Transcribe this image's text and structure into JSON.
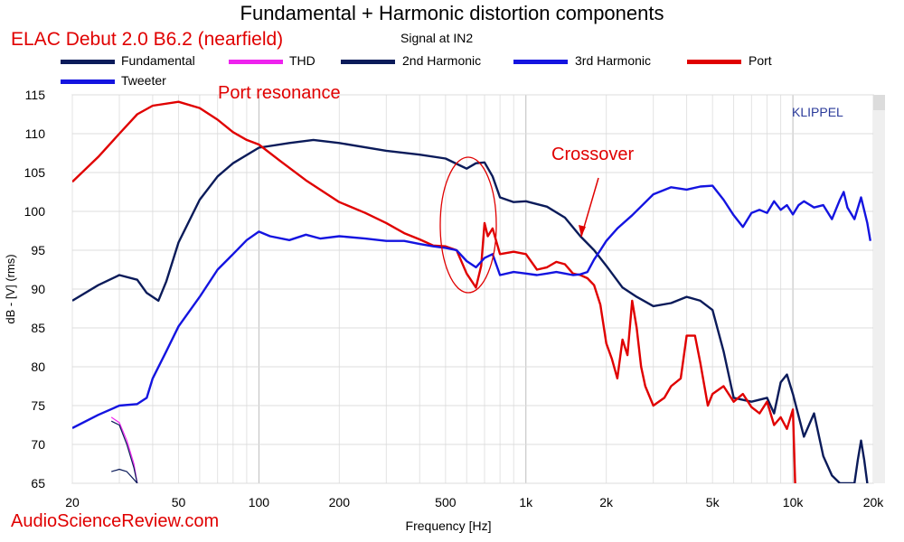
{
  "header": {
    "title": "Fundamental + Harmonic distortion components",
    "subtitle": "Signal at IN2",
    "model": "ELAC Debut 2.0 B6.2 (nearfield)",
    "brand": "KLIPPEL",
    "watermark": "AudioScienceReview.com"
  },
  "annotations": {
    "port_resonance": "Port resonance",
    "crossover": "Crossover"
  },
  "chart_data": {
    "type": "line",
    "title": "Fundamental + Harmonic distortion components",
    "subtitle": "Signal at IN2",
    "xlabel": "Frequency [Hz]",
    "ylabel": "dB - [V] (rms)",
    "xscale": "log",
    "xlim": [
      20,
      20000
    ],
    "ylim": [
      65,
      115
    ],
    "grid": true,
    "legend_position": "top",
    "x_ticks": [
      {
        "value": 20,
        "label": "20"
      },
      {
        "value": 50,
        "label": "50"
      },
      {
        "value": 100,
        "label": "100"
      },
      {
        "value": 200,
        "label": "200"
      },
      {
        "value": 500,
        "label": "500"
      },
      {
        "value": 1000,
        "label": "1k"
      },
      {
        "value": 2000,
        "label": "2k"
      },
      {
        "value": 5000,
        "label": "5k"
      },
      {
        "value": 10000,
        "label": "10k"
      },
      {
        "value": 20000,
        "label": "20k"
      }
    ],
    "y_ticks": [
      115,
      110,
      105,
      100,
      95,
      90,
      85,
      80,
      75,
      70,
      65
    ],
    "series": [
      {
        "name": "Fundamental",
        "color": "#0b1b5a",
        "points": [
          [
            20,
            88.5
          ],
          [
            25,
            90.5
          ],
          [
            30,
            91.8
          ],
          [
            35,
            91.2
          ],
          [
            38,
            89.5
          ],
          [
            42,
            88.5
          ],
          [
            45,
            91
          ],
          [
            50,
            96
          ],
          [
            60,
            101.5
          ],
          [
            70,
            104.5
          ],
          [
            80,
            106.2
          ],
          [
            100,
            108.2
          ],
          [
            130,
            108.8
          ],
          [
            160,
            109.2
          ],
          [
            200,
            108.8
          ],
          [
            300,
            107.8
          ],
          [
            400,
            107.3
          ],
          [
            500,
            106.8
          ],
          [
            600,
            105.5
          ],
          [
            650,
            106.2
          ],
          [
            700,
            106.3
          ],
          [
            750,
            104.5
          ],
          [
            800,
            101.8
          ],
          [
            900,
            101.2
          ],
          [
            1000,
            101.3
          ],
          [
            1200,
            100.6
          ],
          [
            1400,
            99.2
          ],
          [
            1600,
            96.8
          ],
          [
            1800,
            95
          ],
          [
            2000,
            93
          ],
          [
            2300,
            90.2
          ],
          [
            2600,
            89
          ],
          [
            3000,
            87.8
          ],
          [
            3500,
            88.2
          ],
          [
            4000,
            89
          ],
          [
            4500,
            88.5
          ],
          [
            5000,
            87.3
          ],
          [
            5500,
            82
          ],
          [
            6000,
            76
          ],
          [
            7000,
            75.5
          ],
          [
            8000,
            76
          ],
          [
            8500,
            74
          ],
          [
            9000,
            78
          ],
          [
            9500,
            79
          ],
          [
            10000,
            76.5
          ],
          [
            11000,
            71
          ],
          [
            12000,
            74
          ],
          [
            13000,
            68.5
          ],
          [
            14000,
            66
          ],
          [
            15000,
            65
          ],
          [
            16000,
            65
          ],
          [
            17000,
            65
          ],
          [
            17500,
            68
          ],
          [
            18000,
            70.5
          ],
          [
            18500,
            68
          ],
          [
            19000,
            65
          ]
        ]
      },
      {
        "name": "THD",
        "color": "#ee22ee",
        "points": [
          [
            28,
            73.5
          ],
          [
            30,
            72.8
          ],
          [
            32,
            70.5
          ],
          [
            34,
            67.5
          ],
          [
            35,
            65
          ]
        ]
      },
      {
        "name": "2nd Harmonic",
        "color": "#0b1b5a",
        "points": [
          [
            28,
            73
          ],
          [
            30,
            72.5
          ],
          [
            32,
            70
          ],
          [
            34,
            67
          ],
          [
            35,
            65
          ]
        ]
      },
      {
        "name": "3rd Harmonic",
        "color": "#0b1b5a",
        "points": [
          [
            28,
            66.5
          ],
          [
            30,
            66.8
          ],
          [
            32,
            66.5
          ],
          [
            34,
            65.5
          ],
          [
            35,
            65
          ]
        ]
      },
      {
        "name": "Port",
        "color": "#e00000",
        "points": [
          [
            20,
            103.8
          ],
          [
            25,
            107
          ],
          [
            30,
            110
          ],
          [
            35,
            112.5
          ],
          [
            40,
            113.6
          ],
          [
            50,
            114.1
          ],
          [
            60,
            113.3
          ],
          [
            70,
            111.8
          ],
          [
            80,
            110.2
          ],
          [
            90,
            109.2
          ],
          [
            100,
            108.6
          ],
          [
            120,
            106.5
          ],
          [
            150,
            104
          ],
          [
            200,
            101.2
          ],
          [
            250,
            99.8
          ],
          [
            300,
            98.5
          ],
          [
            350,
            97.2
          ],
          [
            400,
            96.4
          ],
          [
            450,
            95.6
          ],
          [
            500,
            95.5
          ],
          [
            550,
            95
          ],
          [
            600,
            92
          ],
          [
            650,
            90.2
          ],
          [
            680,
            93
          ],
          [
            700,
            98.5
          ],
          [
            720,
            96.8
          ],
          [
            750,
            97.8
          ],
          [
            800,
            94.5
          ],
          [
            900,
            94.8
          ],
          [
            1000,
            94.5
          ],
          [
            1100,
            92.5
          ],
          [
            1200,
            92.8
          ],
          [
            1300,
            93.5
          ],
          [
            1400,
            93.2
          ],
          [
            1500,
            92
          ],
          [
            1600,
            91.8
          ],
          [
            1700,
            91.4
          ],
          [
            1800,
            90.5
          ],
          [
            1900,
            88
          ],
          [
            2000,
            83
          ],
          [
            2100,
            81
          ],
          [
            2200,
            78.5
          ],
          [
            2300,
            83.5
          ],
          [
            2400,
            81.5
          ],
          [
            2500,
            88.5
          ],
          [
            2600,
            85
          ],
          [
            2700,
            80
          ],
          [
            2800,
            77.5
          ],
          [
            3000,
            75
          ],
          [
            3300,
            76
          ],
          [
            3500,
            77.5
          ],
          [
            3800,
            78.5
          ],
          [
            4000,
            84
          ],
          [
            4300,
            84
          ],
          [
            4500,
            80.5
          ],
          [
            4800,
            75
          ],
          [
            5000,
            76.5
          ],
          [
            5500,
            77.5
          ],
          [
            6000,
            75.5
          ],
          [
            6500,
            76.5
          ],
          [
            7000,
            74.8
          ],
          [
            7500,
            74
          ],
          [
            8000,
            75.5
          ],
          [
            8500,
            72.5
          ],
          [
            9000,
            73.5
          ],
          [
            9500,
            72
          ],
          [
            10000,
            74.5
          ],
          [
            10200,
            65
          ]
        ]
      },
      {
        "name": "Tweeter",
        "color": "#1414e0",
        "points": [
          [
            20,
            72.1
          ],
          [
            25,
            73.8
          ],
          [
            30,
            75
          ],
          [
            35,
            75.2
          ],
          [
            38,
            76
          ],
          [
            40,
            78.5
          ],
          [
            45,
            82
          ],
          [
            50,
            85.2
          ],
          [
            60,
            89
          ],
          [
            70,
            92.5
          ],
          [
            80,
            94.5
          ],
          [
            90,
            96.3
          ],
          [
            100,
            97.4
          ],
          [
            110,
            96.8
          ],
          [
            130,
            96.3
          ],
          [
            150,
            97
          ],
          [
            170,
            96.5
          ],
          [
            200,
            96.8
          ],
          [
            250,
            96.5
          ],
          [
            300,
            96.2
          ],
          [
            350,
            96.2
          ],
          [
            400,
            95.8
          ],
          [
            450,
            95.5
          ],
          [
            500,
            95.3
          ],
          [
            550,
            95
          ],
          [
            600,
            93.6
          ],
          [
            650,
            92.8
          ],
          [
            700,
            94
          ],
          [
            750,
            94.5
          ],
          [
            800,
            91.8
          ],
          [
            900,
            92.2
          ],
          [
            1000,
            92
          ],
          [
            1100,
            91.8
          ],
          [
            1200,
            92
          ],
          [
            1300,
            92.2
          ],
          [
            1400,
            92
          ],
          [
            1500,
            91.8
          ],
          [
            1600,
            91.9
          ],
          [
            1700,
            92.2
          ],
          [
            1800,
            93.8
          ],
          [
            1900,
            95
          ],
          [
            2000,
            96.2
          ],
          [
            2200,
            97.8
          ],
          [
            2500,
            99.5
          ],
          [
            3000,
            102.2
          ],
          [
            3500,
            103.1
          ],
          [
            4000,
            102.8
          ],
          [
            4500,
            103.2
          ],
          [
            5000,
            103.3
          ],
          [
            5500,
            101.5
          ],
          [
            6000,
            99.5
          ],
          [
            6500,
            98
          ],
          [
            7000,
            99.8
          ],
          [
            7500,
            100.2
          ],
          [
            8000,
            99.8
          ],
          [
            8500,
            101.3
          ],
          [
            9000,
            100.2
          ],
          [
            9500,
            100.8
          ],
          [
            10000,
            99.6
          ],
          [
            10500,
            100.8
          ],
          [
            11000,
            101.3
          ],
          [
            12000,
            100.5
          ],
          [
            13000,
            100.8
          ],
          [
            14000,
            99
          ],
          [
            15000,
            101.5
          ],
          [
            15500,
            102.5
          ],
          [
            16000,
            100.5
          ],
          [
            17000,
            99
          ],
          [
            18000,
            101.8
          ],
          [
            19000,
            98.5
          ],
          [
            19500,
            96.2
          ]
        ]
      }
    ]
  }
}
